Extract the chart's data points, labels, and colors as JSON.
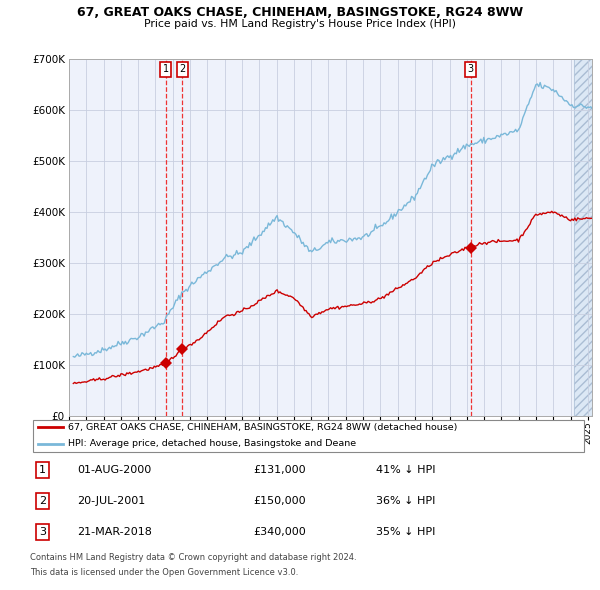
{
  "title": "67, GREAT OAKS CHASE, CHINEHAM, BASINGSTOKE, RG24 8WW",
  "subtitle": "Price paid vs. HM Land Registry's House Price Index (HPI)",
  "legend_line1": "67, GREAT OAKS CHASE, CHINEHAM, BASINGSTOKE, RG24 8WW (detached house)",
  "legend_line2": "HPI: Average price, detached house, Basingstoke and Deane",
  "footnote1": "Contains HM Land Registry data © Crown copyright and database right 2024.",
  "footnote2": "This data is licensed under the Open Government Licence v3.0.",
  "transactions": [
    {
      "label": "1",
      "date": "01-AUG-2000",
      "price": 131000,
      "pct": "41%",
      "x_year": 2000.583
    },
    {
      "label": "2",
      "date": "20-JUL-2001",
      "price": 150000,
      "pct": "36%",
      "x_year": 2001.547
    },
    {
      "label": "3",
      "date": "21-MAR-2018",
      "price": 340000,
      "pct": "35%",
      "x_year": 2018.219
    }
  ],
  "hpi_color": "#7ab8d9",
  "price_color": "#cc0000",
  "dashed_color": "#ee3333",
  "bg_chart": "#eef2fb",
  "grid_color": "#c8cfe0",
  "ylim": [
    0,
    700000
  ],
  "xlim_start": 1995.25,
  "xlim_end": 2025.25,
  "yticks": [
    0,
    100000,
    200000,
    300000,
    400000,
    500000,
    600000,
    700000
  ],
  "ytick_labels": [
    "£0",
    "£100K",
    "£200K",
    "£300K",
    "£400K",
    "£500K",
    "£600K",
    "£700K"
  ]
}
